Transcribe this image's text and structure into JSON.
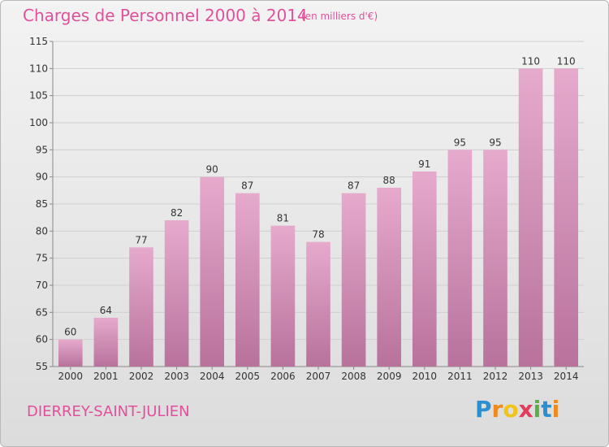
{
  "header": {
    "title": "Charges de Personnel 2000 à 2014",
    "unit": "(en milliers d'€)"
  },
  "footer": {
    "commune": "DIERREY-SAINT-JULIEN",
    "brand": [
      "P",
      "r",
      "o",
      "x",
      "i",
      "t",
      "i"
    ],
    "brand_colors": [
      "#2b8fd0",
      "#f08a1c",
      "#f0c419",
      "#e33b5b",
      "#5bb045",
      "#2b8fd0",
      "#f08a1c"
    ]
  },
  "colors": {
    "title": "#e0519a",
    "bar_top": "#e6aacd",
    "bar_bottom": "#b8729c"
  },
  "chart_data": {
    "type": "bar",
    "title": "Charges de Personnel 2000 à 2014",
    "categories": [
      "2000",
      "2001",
      "2002",
      "2003",
      "2004",
      "2005",
      "2006",
      "2007",
      "2008",
      "2009",
      "2010",
      "2011",
      "2012",
      "2013",
      "2014"
    ],
    "values": [
      60,
      64,
      77,
      82,
      90,
      87,
      81,
      78,
      87,
      88,
      91,
      95,
      95,
      110,
      110
    ],
    "ylim": [
      55,
      115
    ],
    "yticks": [
      55,
      60,
      65,
      70,
      75,
      80,
      85,
      90,
      95,
      100,
      105,
      110,
      115
    ],
    "grid": true
  }
}
